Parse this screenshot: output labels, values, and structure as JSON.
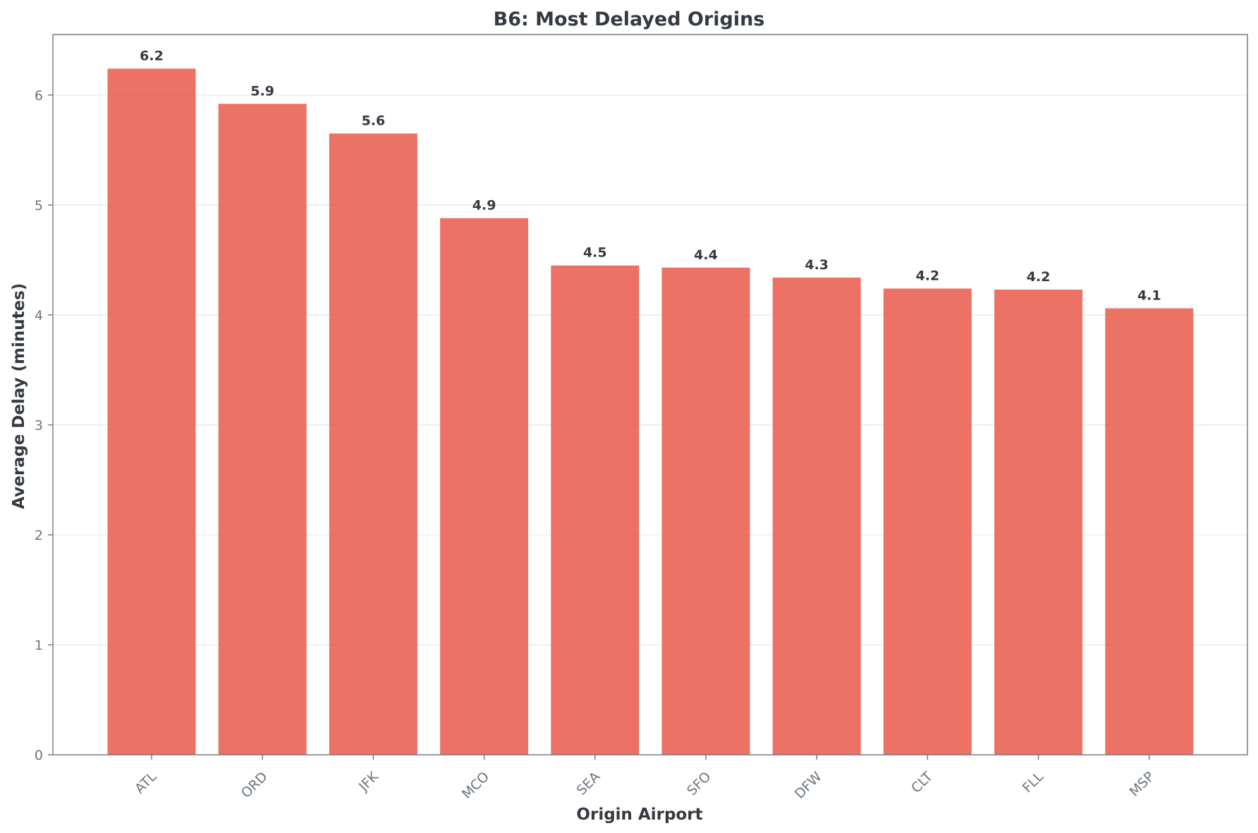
{
  "chart_data": {
    "type": "bar",
    "title": "B6: Most Delayed Origins",
    "xlabel": "Origin Airport",
    "ylabel": "Average Delay (minutes)",
    "categories": [
      "ATL",
      "ORD",
      "JFK",
      "MCO",
      "SEA",
      "SFO",
      "DFW",
      "CLT",
      "FLL",
      "MSP"
    ],
    "values": [
      6.24,
      5.92,
      5.65,
      4.88,
      4.45,
      4.43,
      4.34,
      4.24,
      4.23,
      4.06
    ],
    "value_labels": [
      "6.2",
      "5.9",
      "5.6",
      "4.9",
      "4.5",
      "4.4",
      "4.3",
      "4.2",
      "4.2",
      "4.1"
    ],
    "ylim": [
      0,
      6.55
    ],
    "yticks": [
      0,
      1,
      2,
      3,
      4,
      5,
      6
    ],
    "grid": "y",
    "legend": "none",
    "bar_color": "#e8594a",
    "bar_opacity": 0.85
  }
}
